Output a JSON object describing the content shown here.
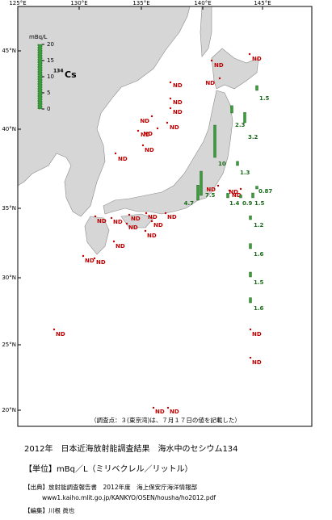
{
  "map": {
    "lon_ticks": [
      "125°E",
      "130°E",
      "135°E",
      "140°E",
      "145°E"
    ],
    "lat_ticks": [
      "45°N",
      "40°N",
      "35°N",
      "30°N",
      "25°N",
      "20°N"
    ],
    "legend": {
      "unit": "mBq/L",
      "isotope_mass": "134",
      "isotope": "Cs",
      "ylim": [
        0,
        20
      ],
      "yticks": [
        0,
        5,
        10,
        15,
        20
      ],
      "color": "#3a9c3a"
    },
    "stations": [
      {
        "label": "ND"
      },
      {
        "label": "ND"
      },
      {
        "label": "ND"
      },
      {
        "label": "ND"
      },
      {
        "label": "ND"
      },
      {
        "label": "ND"
      },
      {
        "label": "ND"
      },
      {
        "label": "ND"
      },
      {
        "label": "ND"
      },
      {
        "label": "ND"
      },
      {
        "label": "ND"
      },
      {
        "label": "ND"
      },
      {
        "label": "ND"
      },
      {
        "label": "ND"
      },
      {
        "label": "ND"
      },
      {
        "value": 0.87
      },
      {
        "value": 1.5
      },
      {
        "value": 2.3
      },
      {
        "value": 3.2
      },
      {
        "value": 10
      },
      {
        "value": 1.3
      },
      {
        "value": 7.5
      },
      {
        "value": 4.7
      },
      {
        "value": 1.4
      },
      {
        "value": 0.9
      },
      {
        "value": 1.5
      },
      {
        "value": 1.2
      },
      {
        "value": 1.6
      },
      {
        "value": 1.5
      },
      {
        "value": 1.6
      },
      {
        "label": "ND"
      },
      {
        "label": "ND"
      },
      {
        "label": "ND"
      },
      {
        "label": "ND"
      },
      {
        "label": "ND"
      },
      {
        "label": "ND"
      },
      {
        "label": "ND"
      },
      {
        "label": "ND"
      },
      {
        "label": "ND"
      },
      {
        "label": "ND"
      },
      {
        "label": "ND"
      },
      {
        "label": "ND"
      },
      {
        "label": "ND"
      },
      {
        "label": "ND"
      },
      {
        "label": "ND"
      },
      {
        "label": "ND"
      }
    ],
    "note": "（調査点：３(東京湾)は、７月１７日の値を記載した）"
  },
  "caption": {
    "title": "2012年　日本近海放射能調査結果　海水中のセシウム134",
    "unit": "【単位】mBq／L（ミリベクレル／リットル）",
    "source": "【出典】放射能調査報告書　2012年度　海上保安庁海洋情報部",
    "url": "www1.kaiho.mlit.go.jp/KANKYO/OSEN/housha/ho2012.pdf",
    "editor": "【編集】川根 眞也"
  }
}
